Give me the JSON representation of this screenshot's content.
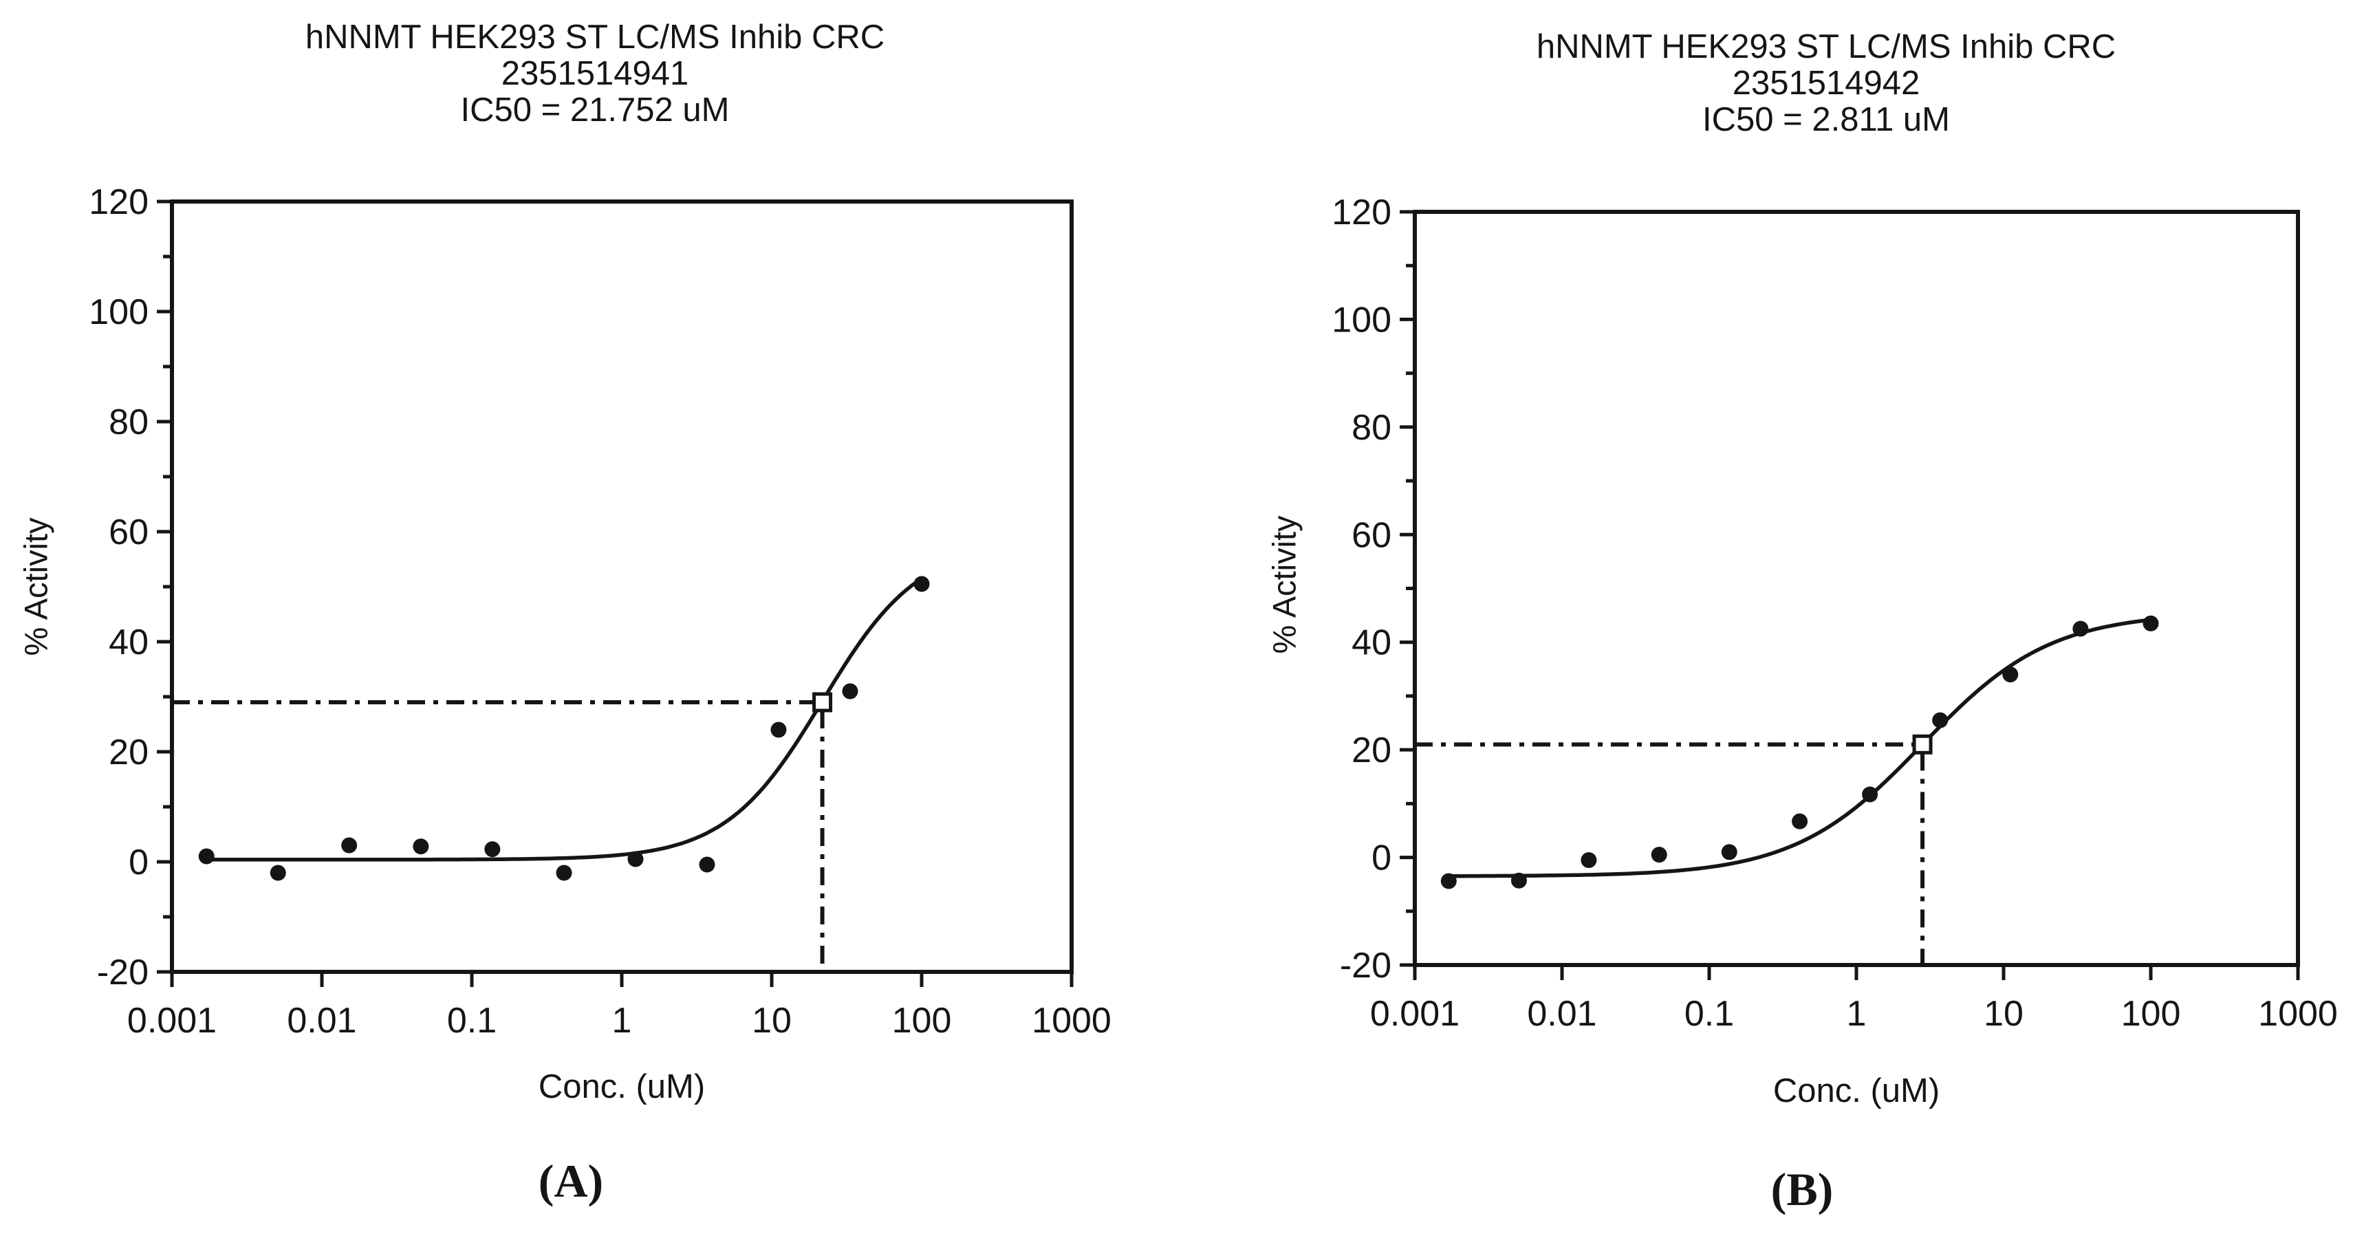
{
  "figure": {
    "background": "#ffffff",
    "ink_color": "#151515"
  },
  "panels": [
    {
      "caption": "(A)",
      "title_lines": [
        "hNNMT HEK293 ST LC/MS Inhib CRC",
        "2351514941",
        "IC50 = 21.752 uM"
      ]
    },
    {
      "caption": "(B)",
      "title_lines": [
        "hNNMT HEK293 ST LC/MS Inhib CRC",
        "2351514942",
        "IC50 = 2.811 uM"
      ]
    }
  ],
  "chart_data": [
    {
      "type": "scatter",
      "title": "hNNMT HEK293 ST LC/MS Inhib CRC",
      "subtitle": "2351514941",
      "annotation": "IC50 = 21.752 uM",
      "xlabel": "Conc. (uM)",
      "ylabel": "% Activity",
      "x_scale": "log",
      "xlim": [
        0.001,
        1000
      ],
      "ylim": [
        -20,
        120
      ],
      "x_ticks": [
        0.001,
        0.01,
        0.1,
        1,
        10,
        100,
        1000
      ],
      "x_tick_labels": [
        "0.001",
        "0.01",
        "0.1",
        "1",
        "10",
        "100",
        "1000"
      ],
      "y_ticks": [
        -20,
        0,
        20,
        40,
        60,
        80,
        100,
        120
      ],
      "y_minor_ticks": [
        -10,
        10,
        30,
        50,
        70,
        90,
        110
      ],
      "grid": false,
      "legend": "none",
      "points": {
        "x": [
          0.0017,
          0.0051,
          0.0152,
          0.0457,
          0.137,
          0.412,
          1.235,
          3.704,
          11.11,
          33.33,
          100
        ],
        "y": [
          1,
          -2,
          3,
          2.8,
          2.3,
          -2,
          0.5,
          -0.5,
          24,
          31,
          50.5
        ]
      },
      "fit_curve": {
        "model": "4PL",
        "bottom": 0.4,
        "top": 58,
        "ic50": 21.752,
        "hill": 1.35
      },
      "ic50_marker": {
        "x": 21.752,
        "y": 29
      },
      "ic50_value_uM": 21.752
    },
    {
      "type": "scatter",
      "title": "hNNMT HEK293 ST LC/MS Inhib CRC",
      "subtitle": "2351514942",
      "annotation": "IC50 = 2.811 uM",
      "xlabel": "Conc. (uM)",
      "ylabel": "% Activity",
      "x_scale": "log",
      "xlim": [
        0.001,
        1000
      ],
      "ylim": [
        -20,
        120
      ],
      "x_ticks": [
        0.001,
        0.01,
        0.1,
        1,
        10,
        100,
        1000
      ],
      "x_tick_labels": [
        "0.001",
        "0.01",
        "0.1",
        "1",
        "10",
        "100",
        "1000"
      ],
      "y_ticks": [
        -20,
        0,
        20,
        40,
        60,
        80,
        100,
        120
      ],
      "y_minor_ticks": [
        -10,
        10,
        30,
        50,
        70,
        90,
        110
      ],
      "grid": false,
      "legend": "none",
      "points": {
        "x": [
          0.0017,
          0.0051,
          0.0152,
          0.0457,
          0.137,
          0.412,
          1.235,
          3.704,
          11.11,
          33.33,
          100
        ],
        "y": [
          -4.4,
          -4.3,
          -0.5,
          0.5,
          1,
          6.7,
          11.7,
          25.5,
          34,
          42.5,
          43.5
        ]
      },
      "fit_curve": {
        "model": "4PL",
        "bottom": -3.5,
        "top": 45.5,
        "ic50": 2.811,
        "hill": 1.0
      },
      "ic50_marker": {
        "x": 2.811,
        "y": 21
      },
      "ic50_value_uM": 2.811
    }
  ]
}
